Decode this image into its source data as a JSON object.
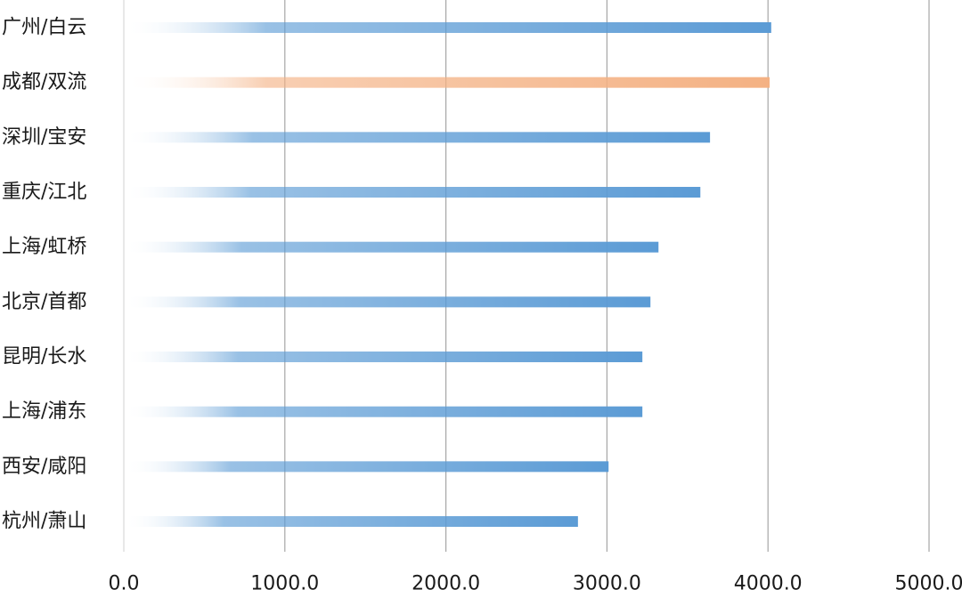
{
  "chart_data": {
    "type": "bar",
    "orientation": "horizontal",
    "title": "",
    "xlabel": "",
    "ylabel": "",
    "categories": [
      "广州/白云",
      "成都/双流",
      "深圳/宝安",
      "重庆/江北",
      "上海/虹桥",
      "北京/首都",
      "昆明/长水",
      "上海/浦东",
      "西安/咸阳",
      "杭州/萧山"
    ],
    "values": [
      4020,
      4010,
      3640,
      3580,
      3320,
      3270,
      3220,
      3220,
      3010,
      2820
    ],
    "xlim": [
      0,
      5000
    ],
    "x_ticks": [
      0,
      1000,
      2000,
      3000,
      4000,
      5000
    ],
    "x_tick_labels": [
      "0.0",
      "1000.0",
      "2000.0",
      "3000.0",
      "4000.0",
      "5000.0"
    ],
    "grid": "vertical",
    "legend": "none",
    "highlight": "成都/双流",
    "colors": {
      "bar": "#5b9bd5",
      "highlight": "#f4b183",
      "gridline": "#a6a6a6",
      "zero_line": "#d9d9d9"
    }
  }
}
